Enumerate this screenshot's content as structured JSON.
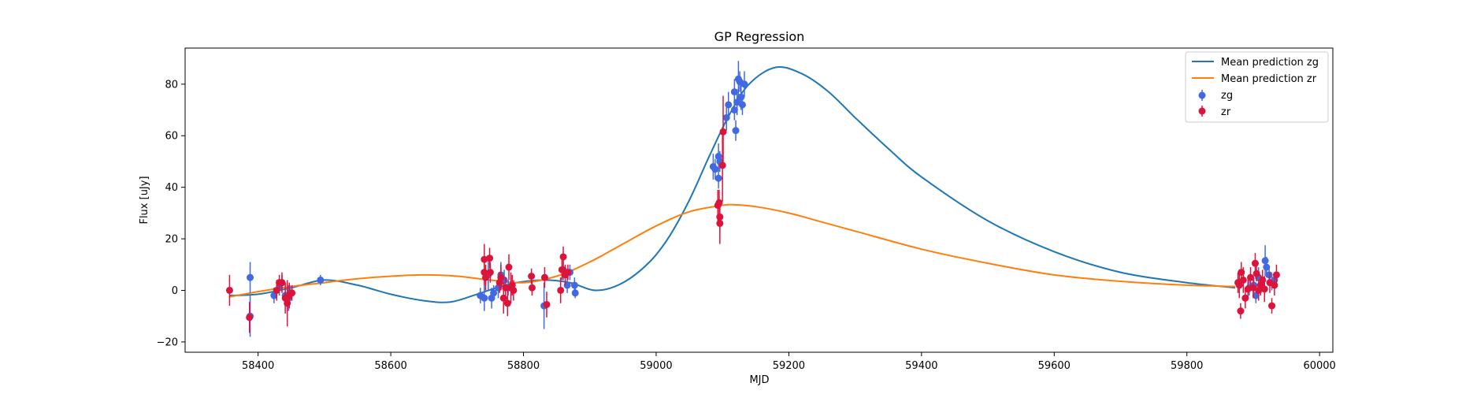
{
  "chart_data": {
    "type": "scatter",
    "title": "GP Regression",
    "xlabel": "MJD",
    "ylabel": "Flux [uJy]",
    "xlim": [
      58290,
      60020
    ],
    "ylim": [
      -24,
      94
    ],
    "xticks": [
      58400,
      58600,
      58800,
      59000,
      59200,
      59400,
      59600,
      59800,
      60000
    ],
    "yticks": [
      -20,
      0,
      20,
      40,
      60,
      80
    ],
    "legend_position": "top-right",
    "colors": {
      "mean_zg": "#1f77b4",
      "mean_zr": "#ff7f0e",
      "zg": "#4169e1",
      "zr": "#dc143c"
    },
    "lines": [
      {
        "name": "Mean prediction zg",
        "color": "#1f77b4",
        "x": [
          58357,
          58400,
          58450,
          58500,
          58550,
          58600,
          58650,
          58690,
          58730,
          58780,
          58830,
          58870,
          58910,
          58950,
          58990,
          59020,
          59050,
          59080,
          59110,
          59140,
          59180,
          59220,
          59260,
          59300,
          59350,
          59400,
          59500,
          59600,
          59700,
          59800,
          59873
        ],
        "y": [
          -2,
          -1.5,
          1,
          4,
          2,
          -1.5,
          -4,
          -4.5,
          -1.5,
          2.5,
          4,
          3,
          0,
          3,
          11,
          21,
          35,
          52,
          68,
          80,
          86.5,
          84,
          77,
          67,
          55,
          44,
          27,
          15,
          7,
          3,
          1
        ]
      },
      {
        "name": "Mean prediction zr",
        "color": "#ff7f0e",
        "x": [
          58357,
          58400,
          58450,
          58500,
          58550,
          58600,
          58650,
          58700,
          58750,
          58800,
          58850,
          58900,
          58950,
          59000,
          59050,
          59100,
          59120,
          59150,
          59200,
          59250,
          59300,
          59400,
          59500,
          59600,
          59700,
          59800,
          59873
        ],
        "y": [
          -2.5,
          -0.5,
          1.5,
          3,
          4.5,
          5.5,
          6,
          5.5,
          4,
          3,
          5.5,
          11,
          18,
          25,
          30.5,
          33,
          33.2,
          32.5,
          30,
          26.5,
          23,
          16,
          10.5,
          6,
          3.5,
          2,
          1.5
        ]
      }
    ],
    "series": [
      {
        "name": "zg",
        "color": "#4169e1",
        "points": [
          [
            58388,
            -10,
            8
          ],
          [
            58388,
            5,
            6
          ],
          [
            58424,
            -2,
            3
          ],
          [
            58432,
            1,
            3
          ],
          [
            58436,
            3,
            3
          ],
          [
            58441,
            -2,
            4
          ],
          [
            58446,
            -3,
            5
          ],
          [
            58448,
            -1,
            3
          ],
          [
            58494,
            4,
            2
          ],
          [
            58735,
            -2,
            3
          ],
          [
            58741,
            -3,
            5
          ],
          [
            58747,
            6,
            6
          ],
          [
            58752,
            -3,
            4
          ],
          [
            58755,
            -1,
            3
          ],
          [
            58762,
            1,
            4
          ],
          [
            58766,
            6,
            5
          ],
          [
            58771,
            4,
            4
          ],
          [
            58777,
            1,
            3
          ],
          [
            58783,
            2,
            3
          ],
          [
            58831,
            -6,
            9
          ],
          [
            58860,
            8,
            4
          ],
          [
            58866,
            2,
            3
          ],
          [
            58870,
            7,
            3
          ],
          [
            58877,
            2,
            3
          ],
          [
            58878,
            -1,
            2
          ],
          [
            59086,
            48,
            5
          ],
          [
            59089,
            47,
            4
          ],
          [
            59094,
            52,
            5
          ],
          [
            59096,
            50,
            4
          ],
          [
            59094,
            43.5,
            4
          ],
          [
            59106,
            67,
            5
          ],
          [
            59109,
            72,
            5
          ],
          [
            59118,
            70,
            4
          ],
          [
            59118,
            77,
            5
          ],
          [
            59120,
            62,
            4
          ],
          [
            59122,
            73,
            5
          ],
          [
            59124,
            82,
            7
          ],
          [
            59126,
            81,
            4
          ],
          [
            59128,
            75,
            5
          ],
          [
            59130,
            72,
            4
          ],
          [
            59133,
            80,
            5
          ],
          [
            59894,
            1,
            3
          ],
          [
            59901,
            2,
            3
          ],
          [
            59904,
            -2,
            3
          ],
          [
            59908,
            5,
            4
          ],
          [
            59912,
            2,
            3
          ],
          [
            59918,
            11.5,
            6
          ],
          [
            59920,
            9,
            4
          ],
          [
            59924,
            6,
            3
          ],
          [
            59928,
            3,
            3
          ],
          [
            59932,
            4,
            3
          ]
        ]
      },
      {
        "name": "zr",
        "color": "#dc143c",
        "points": [
          [
            58357,
            0,
            6
          ],
          [
            58387,
            -10.5,
            6
          ],
          [
            58428,
            0,
            4
          ],
          [
            58432,
            3,
            3
          ],
          [
            58436,
            3,
            4
          ],
          [
            58441,
            -3,
            6
          ],
          [
            58444,
            -5,
            9
          ],
          [
            58447,
            -2,
            5
          ],
          [
            58451,
            -1,
            3
          ],
          [
            58741,
            12,
            6
          ],
          [
            58741,
            7,
            5
          ],
          [
            58743,
            5,
            5
          ],
          [
            58749,
            12.5,
            4
          ],
          [
            58750,
            7,
            4
          ],
          [
            58764,
            3,
            4
          ],
          [
            58766,
            5,
            5
          ],
          [
            58770,
            -3,
            6
          ],
          [
            58773,
            1,
            4
          ],
          [
            58776,
            -5,
            5
          ],
          [
            58778,
            9,
            5
          ],
          [
            58781,
            1,
            6
          ],
          [
            58783,
            2,
            4
          ],
          [
            58785,
            0,
            4
          ],
          [
            58812,
            5.5,
            3
          ],
          [
            58813,
            1,
            3
          ],
          [
            58832,
            5,
            4
          ],
          [
            58835,
            -5.5,
            5
          ],
          [
            58856,
            0,
            5
          ],
          [
            58858,
            8,
            4
          ],
          [
            58860,
            13,
            4
          ],
          [
            58863,
            6,
            4
          ],
          [
            58867,
            7,
            3
          ],
          [
            59093,
            33,
            6
          ],
          [
            59095,
            34,
            5
          ],
          [
            59096,
            28.5,
            6
          ],
          [
            59096,
            26,
            8
          ],
          [
            59100,
            48.5,
            14
          ],
          [
            59101,
            61.5,
            14
          ],
          [
            59877,
            3,
            4
          ],
          [
            59879,
            2,
            5
          ],
          [
            59881,
            -8,
            3
          ],
          [
            59882,
            7,
            4
          ],
          [
            59885,
            4,
            5
          ],
          [
            59888,
            -3,
            4
          ],
          [
            59892,
            0.5,
            4
          ],
          [
            59896,
            5,
            4
          ],
          [
            59900,
            1,
            4
          ],
          [
            59903,
            10.5,
            4
          ],
          [
            59905,
            6.5,
            3
          ],
          [
            59908,
            0,
            4
          ],
          [
            59911,
            2,
            4
          ],
          [
            59914,
            4,
            4
          ],
          [
            59917,
            0.5,
            5
          ],
          [
            59925,
            3,
            4
          ],
          [
            59928,
            -6,
            3
          ],
          [
            59932,
            2,
            4
          ],
          [
            59935,
            6,
            4
          ]
        ]
      }
    ]
  }
}
